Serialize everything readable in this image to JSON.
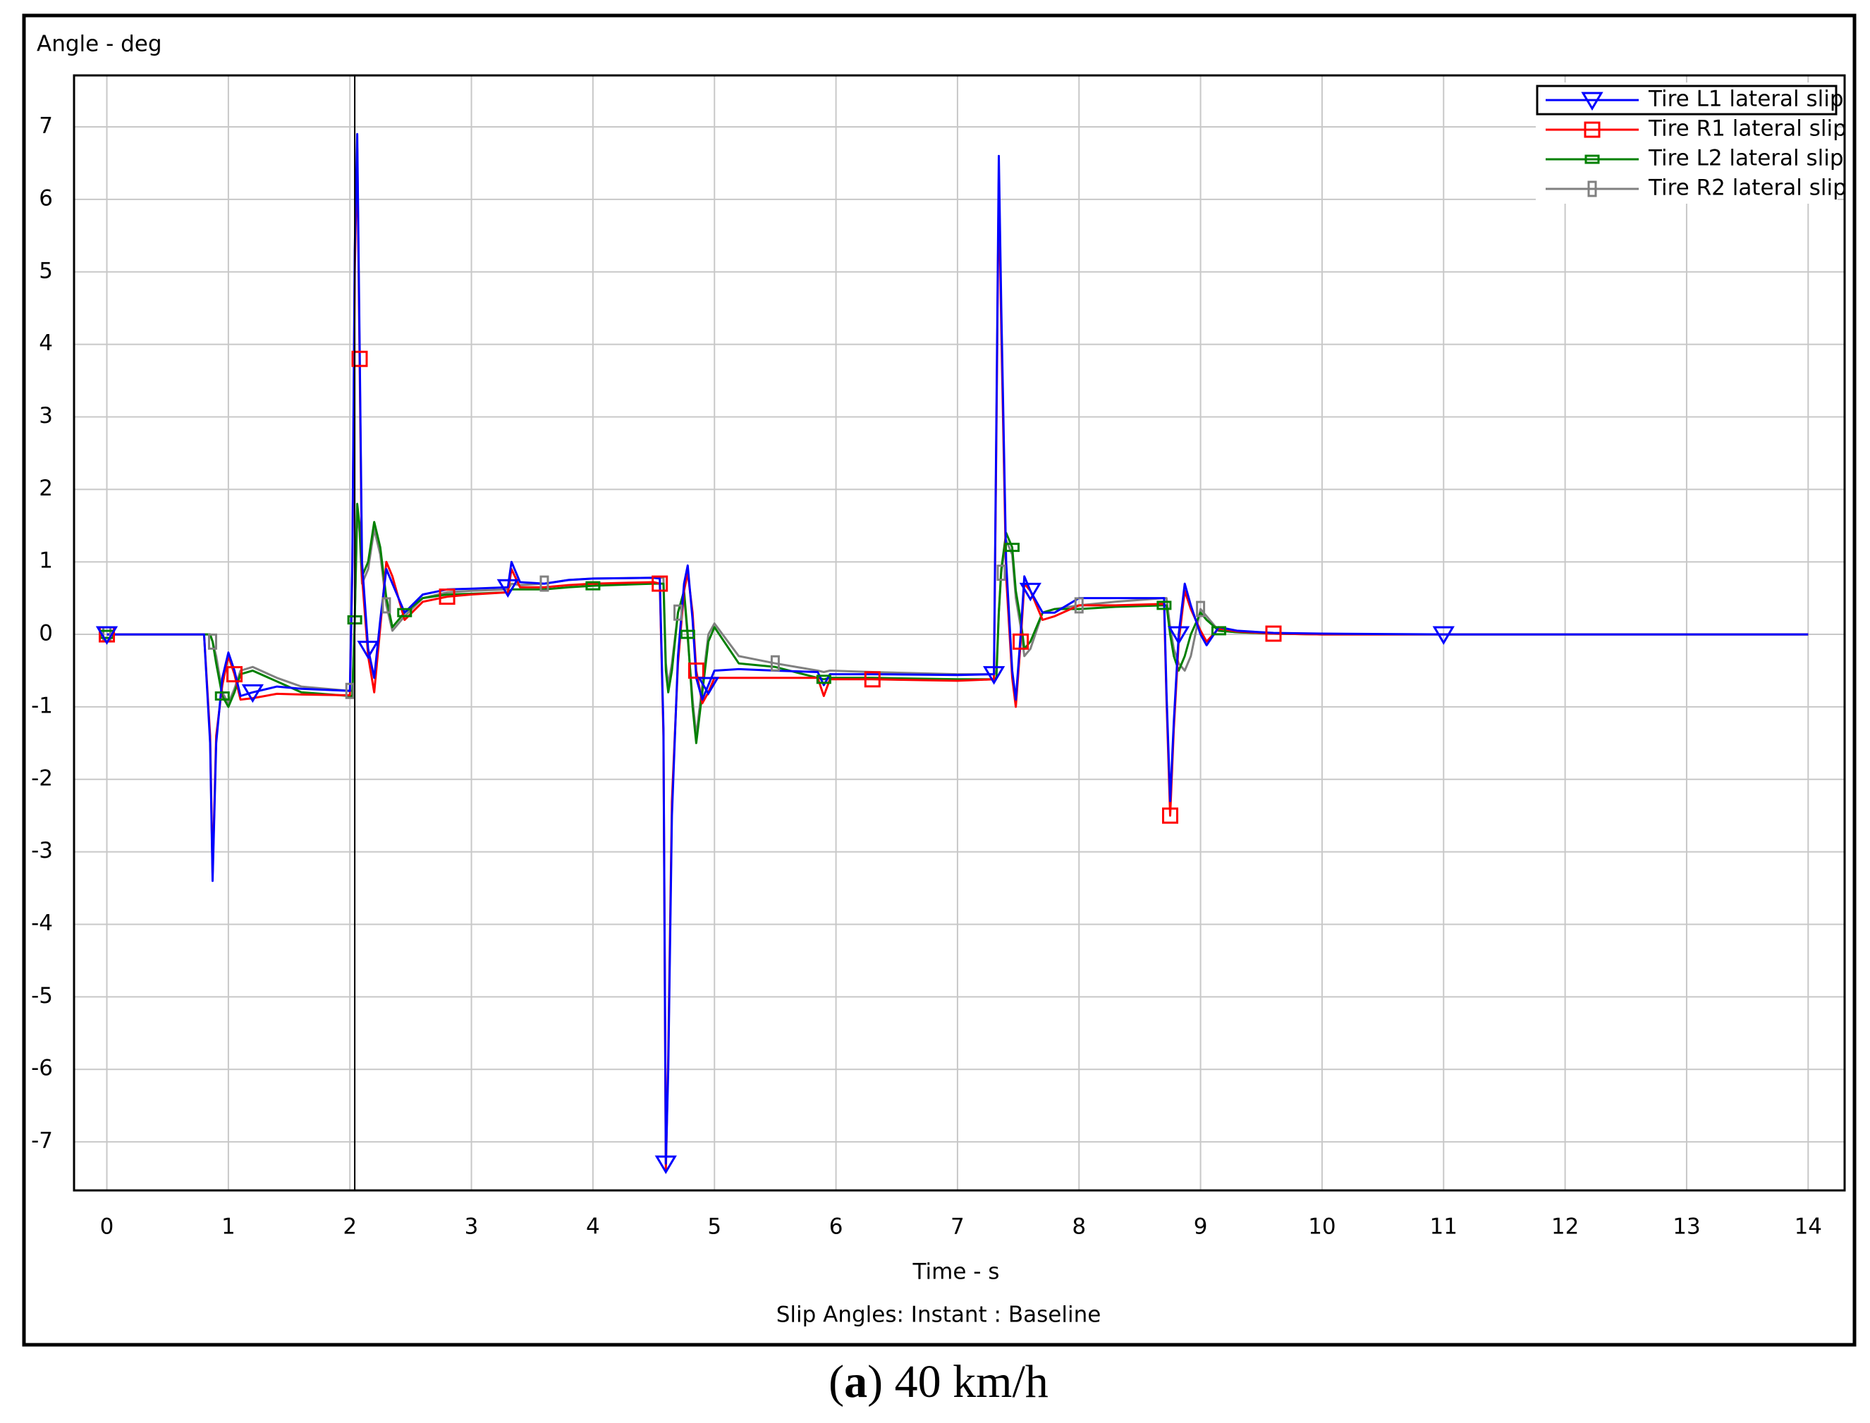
{
  "chart_data": {
    "type": "line",
    "y_label": "Angle - deg",
    "x_label": "Time - s",
    "subtitle": "Slip Angles: Instant : Baseline",
    "caption": [
      "(",
      "a",
      ") 40 km/h"
    ],
    "xlim": [
      -0.27,
      14.3
    ],
    "ylim": [
      -7.67,
      7.71
    ],
    "xticks": [
      0,
      1,
      2,
      3,
      4,
      5,
      6,
      7,
      8,
      9,
      10,
      11,
      12,
      13,
      14
    ],
    "yticks": [
      -7,
      -6,
      -5,
      -4,
      -3,
      -2,
      -1,
      0,
      1,
      2,
      3,
      4,
      5,
      6,
      7
    ],
    "grid": true,
    "legend": "upper right",
    "cursor_x": 2.04,
    "x": [
      0,
      0.8,
      0.85,
      0.87,
      0.9,
      0.95,
      1.0,
      1.05,
      1.1,
      1.2,
      1.4,
      1.6,
      2.0,
      2.02,
      2.04,
      2.06,
      2.08,
      2.1,
      2.15,
      2.2,
      2.25,
      2.3,
      2.35,
      2.45,
      2.6,
      2.8,
      3.0,
      3.3,
      3.33,
      3.4,
      3.6,
      3.8,
      4.0,
      4.5,
      4.55,
      4.58,
      4.6,
      4.62,
      4.65,
      4.7,
      4.75,
      4.78,
      4.82,
      4.85,
      4.9,
      4.95,
      5.0,
      5.2,
      5.5,
      5.85,
      5.9,
      5.95,
      6.3,
      7.0,
      7.3,
      7.32,
      7.34,
      7.36,
      7.4,
      7.45,
      7.48,
      7.52,
      7.55,
      7.6,
      7.7,
      7.8,
      8.0,
      8.3,
      8.7,
      8.72,
      8.75,
      8.78,
      8.82,
      8.87,
      8.92,
      9.0,
      9.05,
      9.15,
      9.3,
      9.6,
      10,
      11,
      14
    ],
    "series": [
      {
        "name": "Tire L1 lateral slip",
        "color": "#0000ff",
        "marker": "triangle",
        "values": [
          0,
          0,
          -1.5,
          -3.4,
          -1.5,
          -0.6,
          -0.25,
          -0.5,
          -0.85,
          -0.8,
          -0.72,
          -0.75,
          -0.78,
          1.0,
          5.3,
          6.9,
          4.0,
          1.0,
          -0.2,
          -0.6,
          0.2,
          0.9,
          0.7,
          0.3,
          0.55,
          0.62,
          0.63,
          0.65,
          1.0,
          0.72,
          0.7,
          0.75,
          0.77,
          0.78,
          0.77,
          -1.3,
          -7.3,
          -6.0,
          -2.5,
          -0.3,
          0.7,
          0.95,
          0.2,
          -0.6,
          -0.9,
          -0.7,
          -0.5,
          -0.48,
          -0.5,
          -0.52,
          -0.7,
          -0.55,
          -0.55,
          -0.56,
          -0.55,
          3.0,
          6.6,
          4.5,
          1.0,
          -0.5,
          -0.9,
          0.0,
          0.8,
          0.6,
          0.3,
          0.3,
          0.5,
          0.5,
          0.5,
          -0.8,
          -2.3,
          -1.2,
          0.0,
          0.7,
          0.4,
          0.0,
          -0.15,
          0.1,
          0.05,
          0.02,
          0.01,
          0,
          0
        ]
      },
      {
        "name": "Tire R1 lateral slip",
        "color": "#ff0000",
        "marker": "square",
        "values": [
          0,
          0,
          -1.4,
          -3.3,
          -1.4,
          -0.7,
          -0.3,
          -0.55,
          -0.9,
          -0.88,
          -0.82,
          -0.83,
          -0.84,
          0.9,
          5.0,
          6.7,
          3.8,
          0.8,
          -0.3,
          -0.8,
          0.1,
          1.0,
          0.8,
          0.2,
          0.45,
          0.52,
          0.55,
          0.58,
          0.9,
          0.65,
          0.65,
          0.68,
          0.7,
          0.72,
          0.7,
          -1.4,
          -7.4,
          -5.8,
          -2.3,
          -0.4,
          0.6,
          0.85,
          0.3,
          -0.5,
          -0.95,
          -0.8,
          -0.6,
          -0.6,
          -0.6,
          -0.6,
          -0.85,
          -0.62,
          -0.62,
          -0.64,
          -0.62,
          2.8,
          6.3,
          4.2,
          0.8,
          -0.6,
          -1.0,
          -0.1,
          0.7,
          0.6,
          0.2,
          0.25,
          0.4,
          0.4,
          0.42,
          -0.9,
          -2.5,
          -1.3,
          -0.1,
          0.6,
          0.35,
          0.05,
          -0.1,
          0.08,
          0.04,
          0.01,
          0,
          0,
          0
        ]
      },
      {
        "name": "Tire L2 lateral slip",
        "color": "#008000",
        "marker": "flat",
        "values": [
          0,
          0,
          0,
          -0.1,
          -0.4,
          -0.85,
          -1.0,
          -0.8,
          -0.55,
          -0.5,
          -0.65,
          -0.8,
          -0.85,
          -0.85,
          0.2,
          1.8,
          1.5,
          0.8,
          1.0,
          1.55,
          1.2,
          0.5,
          0.1,
          0.3,
          0.5,
          0.55,
          0.56,
          0.58,
          0.62,
          0.62,
          0.62,
          0.65,
          0.67,
          0.7,
          0.7,
          0.7,
          -0.5,
          -0.8,
          -0.5,
          0.3,
          0.6,
          0.0,
          -1.0,
          -1.5,
          -0.8,
          -0.1,
          0.1,
          -0.4,
          -0.45,
          -0.6,
          -0.62,
          -0.6,
          -0.6,
          -0.62,
          -0.62,
          -0.6,
          0.3,
          0.9,
          1.4,
          1.2,
          0.6,
          0.2,
          -0.2,
          -0.1,
          0.3,
          0.35,
          0.35,
          0.38,
          0.4,
          0.4,
          0.0,
          -0.3,
          -0.5,
          -0.3,
          0.0,
          0.3,
          0.2,
          0.05,
          0.03,
          0.01,
          0,
          0,
          0
        ]
      },
      {
        "name": "Tire R2 lateral slip",
        "color": "#808080",
        "marker": "thin",
        "values": [
          0,
          0,
          0,
          -0.1,
          -0.3,
          -0.8,
          -0.95,
          -0.75,
          -0.5,
          -0.45,
          -0.6,
          -0.72,
          -0.78,
          -0.78,
          0.2,
          1.7,
          1.4,
          0.7,
          0.9,
          1.45,
          1.1,
          0.4,
          0.05,
          0.25,
          0.5,
          0.58,
          0.6,
          0.62,
          0.7,
          0.68,
          0.7,
          0.75,
          0.77,
          0.78,
          0.78,
          0.78,
          -0.4,
          -0.7,
          -0.4,
          0.3,
          0.55,
          -0.05,
          -0.9,
          -1.4,
          -0.7,
          0.0,
          0.15,
          -0.3,
          -0.4,
          -0.5,
          -0.52,
          -0.5,
          -0.52,
          -0.55,
          -0.55,
          -0.5,
          0.3,
          0.85,
          1.3,
          1.1,
          0.5,
          0.1,
          -0.3,
          -0.2,
          0.3,
          0.35,
          0.4,
          0.45,
          0.5,
          0.5,
          0.1,
          -0.2,
          -0.4,
          -0.5,
          -0.3,
          0.35,
          0.25,
          0.05,
          0.03,
          0.01,
          0,
          0,
          0
        ]
      }
    ]
  }
}
